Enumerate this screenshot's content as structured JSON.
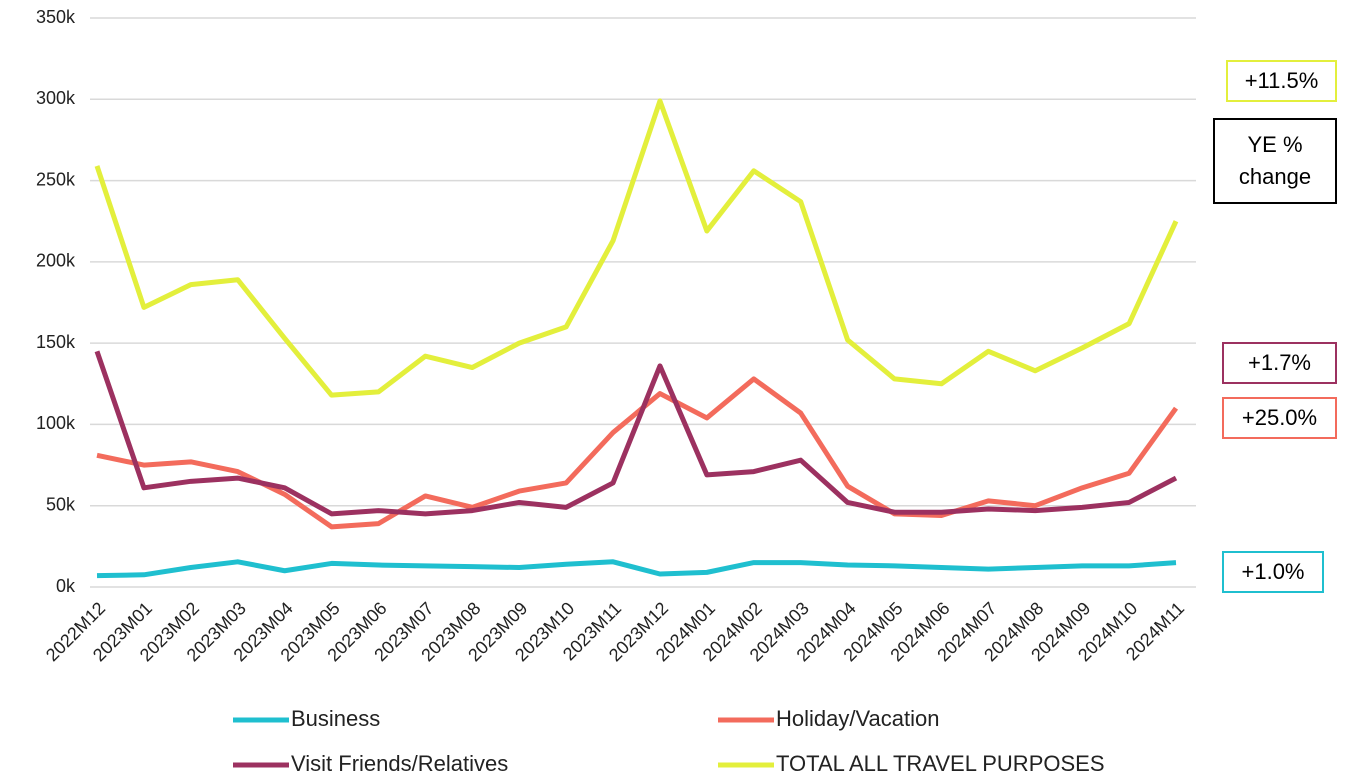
{
  "chart_data": {
    "type": "line",
    "categories": [
      "2022M12",
      "2023M01",
      "2023M02",
      "2023M03",
      "2023M04",
      "2023M05",
      "2023M06",
      "2023M07",
      "2023M08",
      "2023M09",
      "2023M10",
      "2023M11",
      "2023M12",
      "2024M01",
      "2024M02",
      "2024M03",
      "2024M04",
      "2024M05",
      "2024M06",
      "2024M07",
      "2024M08",
      "2024M09",
      "2024M10",
      "2024M11"
    ],
    "series": [
      {
        "name": "Business",
        "color": "#1fbfcf",
        "values": [
          7000,
          7500,
          12000,
          15500,
          10000,
          14500,
          13500,
          13000,
          12500,
          12000,
          14000,
          15500,
          8000,
          9000,
          15000,
          15000,
          13500,
          13000,
          12000,
          11000,
          12000,
          13000,
          13000,
          15000
        ]
      },
      {
        "name": "Holiday/Vacation",
        "color": "#f36b5c",
        "values": [
          81000,
          75000,
          77000,
          71000,
          57000,
          37000,
          39000,
          56000,
          49000,
          59000,
          64000,
          95000,
          119000,
          104000,
          128000,
          107000,
          62000,
          45000,
          44000,
          53000,
          50000,
          61000,
          70000,
          110000
        ]
      },
      {
        "name": "Visit Friends/Relatives",
        "color": "#9c3160",
        "values": [
          145000,
          61000,
          65000,
          67000,
          61000,
          45000,
          47000,
          45000,
          47000,
          52000,
          49000,
          64000,
          136000,
          69000,
          71000,
          78000,
          52000,
          46000,
          46000,
          48000,
          47000,
          49000,
          52000,
          67000
        ]
      },
      {
        "name": "TOTAL ALL TRAVEL PURPOSES",
        "color": "#e3ef3c",
        "values": [
          259000,
          172000,
          186000,
          189000,
          153000,
          118000,
          120000,
          142000,
          135000,
          150000,
          160000,
          213000,
          299000,
          219000,
          256000,
          237000,
          152000,
          128000,
          125000,
          145000,
          133000,
          147000,
          162000,
          225000
        ]
      }
    ],
    "ylim": [
      0,
      350000
    ],
    "yticks": [
      {
        "value": 0,
        "label": "0k"
      },
      {
        "value": 50000,
        "label": "50k"
      },
      {
        "value": 100000,
        "label": "100k"
      },
      {
        "value": 150000,
        "label": "150k"
      },
      {
        "value": 200000,
        "label": "200k"
      },
      {
        "value": 250000,
        "label": "250k"
      },
      {
        "value": 300000,
        "label": "300k"
      },
      {
        "value": 350000,
        "label": "350k"
      }
    ],
    "grid": true,
    "legend": "bottom",
    "annotations": [
      {
        "text": "+11.5%",
        "color": "#e3ef3c"
      },
      {
        "text": "YE % change",
        "color": "#000000"
      },
      {
        "text": "+1.7%",
        "color": "#9c3160"
      },
      {
        "text": "+25.0%",
        "color": "#f36b5c"
      },
      {
        "text": "+1.0%",
        "color": "#1fbfcf"
      }
    ]
  }
}
